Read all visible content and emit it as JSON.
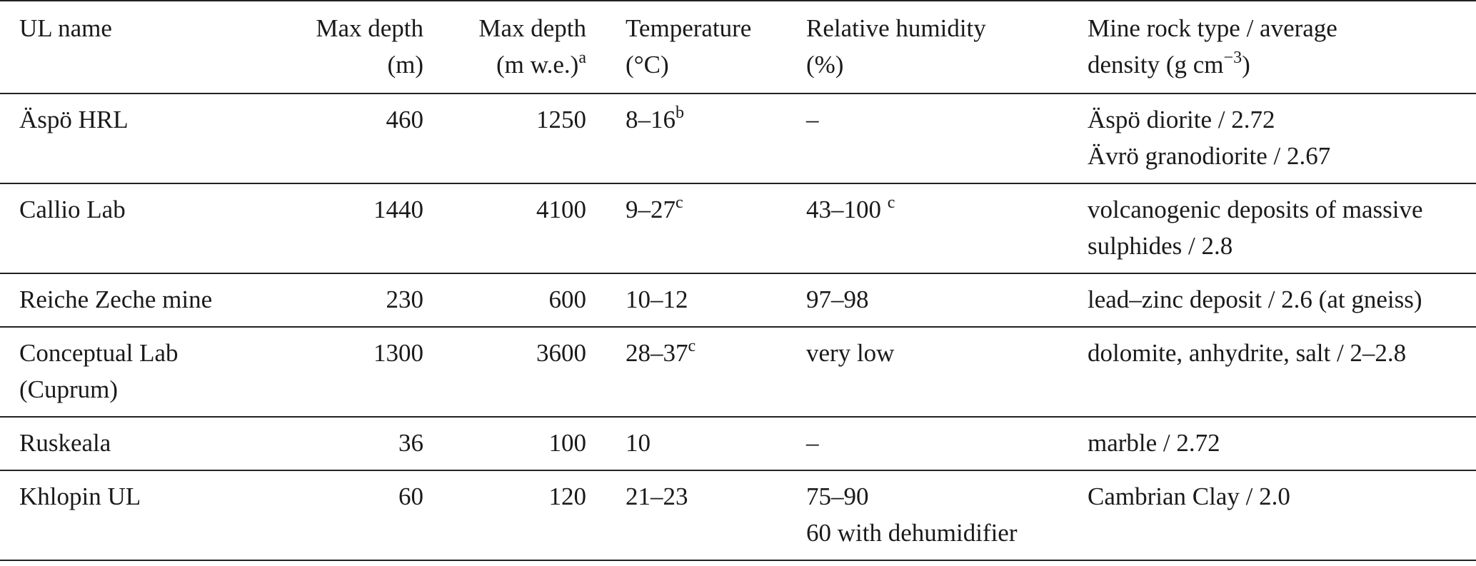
{
  "headers": {
    "name": "UL name",
    "max_depth_m_1": "Max depth",
    "max_depth_m_2": "(m)",
    "max_depth_mwe_1": "Max depth",
    "max_depth_mwe_2": "(m w.e.)",
    "max_depth_mwe_sup": "a",
    "temp_1": "Temperature",
    "temp_2": "(°C)",
    "humidity_1": "Relative humidity",
    "humidity_2": "(%)",
    "rock_1": "Mine rock type / average",
    "rock_2": "density (g cm",
    "rock_2_sup": "−3",
    "rock_2_end": ")"
  },
  "rows": [
    {
      "name_1": "Äspö HRL",
      "name_2": "",
      "depth_m": "460",
      "depth_mwe": "1250",
      "temp": "8–16",
      "temp_sup": "b",
      "humidity_1": "–",
      "humidity_sup": "",
      "humidity_2": "",
      "rock_1": "Äspö diorite / 2.72",
      "rock_2": "Ävrö granodiorite / 2.67"
    },
    {
      "name_1": "Callio Lab",
      "name_2": "",
      "depth_m": "1440",
      "depth_mwe": "4100",
      "temp": "9–27",
      "temp_sup": "c",
      "humidity_1": "43–100 ",
      "humidity_sup": "c",
      "humidity_2": "",
      "rock_1": "volcanogenic deposits of massive",
      "rock_2": "sulphides / 2.8"
    },
    {
      "name_1": "Reiche Zeche mine",
      "name_2": "",
      "depth_m": "230",
      "depth_mwe": "600",
      "temp": "10–12",
      "temp_sup": "",
      "humidity_1": "97–98",
      "humidity_sup": "",
      "humidity_2": "",
      "rock_1": "lead–zinc deposit / 2.6 (at gneiss)",
      "rock_2": ""
    },
    {
      "name_1": "Conceptual Lab",
      "name_2": "(Cuprum)",
      "depth_m": "1300",
      "depth_mwe": "3600",
      "temp": "28–37",
      "temp_sup": "c",
      "humidity_1": "very low",
      "humidity_sup": "",
      "humidity_2": "",
      "rock_1": "dolomite, anhydrite, salt / 2–2.8",
      "rock_2": ""
    },
    {
      "name_1": "Ruskeala",
      "name_2": "",
      "depth_m": "36",
      "depth_mwe": "100",
      "temp": "10",
      "temp_sup": "",
      "humidity_1": "–",
      "humidity_sup": "",
      "humidity_2": "",
      "rock_1": "marble / 2.72",
      "rock_2": ""
    },
    {
      "name_1": "Khlopin UL",
      "name_2": "",
      "depth_m": "60",
      "depth_mwe": "120",
      "temp": "21–23",
      "temp_sup": "",
      "humidity_1": "75–90",
      "humidity_sup": "",
      "humidity_2": "60 with dehumidifier",
      "rock_1": "Cambrian Clay / 2.0",
      "rock_2": ""
    }
  ]
}
